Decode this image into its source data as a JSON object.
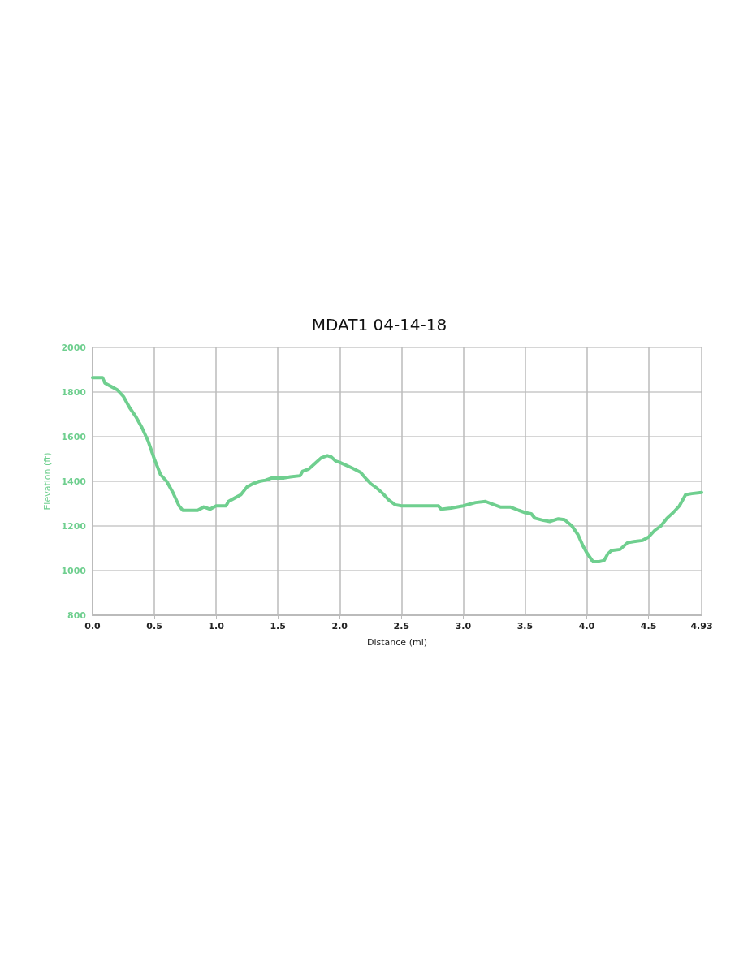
{
  "chart_data": {
    "type": "line",
    "title": "MDAT1 04-14-18",
    "xlabel": "Distance (mi)",
    "ylabel": "Elevation (ft)",
    "x": [
      0,
      0.08,
      0.1,
      0.15,
      0.2,
      0.25,
      0.3,
      0.35,
      0.4,
      0.45,
      0.5,
      0.55,
      0.6,
      0.65,
      0.7,
      0.73,
      0.85,
      0.9,
      0.95,
      1.0,
      1.08,
      1.1,
      1.15,
      1.2,
      1.25,
      1.3,
      1.35,
      1.4,
      1.45,
      1.55,
      1.6,
      1.68,
      1.7,
      1.75,
      1.8,
      1.85,
      1.9,
      1.93,
      1.97,
      2.0,
      2.1,
      2.17,
      2.2,
      2.25,
      2.3,
      2.35,
      2.4,
      2.45,
      2.5,
      2.8,
      2.82,
      2.9,
      3.0,
      3.1,
      3.18,
      3.25,
      3.3,
      3.38,
      3.45,
      3.5,
      3.55,
      3.58,
      3.65,
      3.7,
      3.77,
      3.82,
      3.88,
      3.93,
      3.97,
      4.0,
      4.05,
      4.1,
      4.14,
      4.17,
      4.2,
      4.27,
      4.33,
      4.38,
      4.45,
      4.5,
      4.55,
      4.6,
      4.65,
      4.7,
      4.75,
      4.78,
      4.8,
      4.85,
      4.93
    ],
    "series": [
      {
        "color": "#6fcf8f",
        "values": [
          1865,
          1865,
          1840,
          1825,
          1810,
          1780,
          1730,
          1690,
          1640,
          1580,
          1500,
          1430,
          1400,
          1350,
          1290,
          1270,
          1270,
          1285,
          1275,
          1290,
          1290,
          1310,
          1325,
          1340,
          1375,
          1390,
          1400,
          1405,
          1415,
          1415,
          1420,
          1425,
          1445,
          1455,
          1480,
          1505,
          1515,
          1510,
          1490,
          1485,
          1460,
          1440,
          1420,
          1390,
          1370,
          1345,
          1315,
          1295,
          1290,
          1290,
          1275,
          1280,
          1290,
          1305,
          1310,
          1295,
          1285,
          1285,
          1270,
          1260,
          1255,
          1235,
          1225,
          1220,
          1232,
          1228,
          1200,
          1160,
          1110,
          1080,
          1040,
          1040,
          1045,
          1075,
          1090,
          1095,
          1125,
          1130,
          1135,
          1150,
          1180,
          1200,
          1235,
          1260,
          1290,
          1320,
          1340,
          1345,
          1350
        ]
      }
    ],
    "xlim": [
      0,
      4.93
    ],
    "xticks": [
      {
        "value": 0,
        "label": "0.0"
      },
      0.5,
      {
        "value": 1,
        "label": "1.0"
      },
      1.5,
      {
        "value": 2,
        "label": "2.0"
      },
      2.5,
      {
        "value": 3,
        "label": "3.0"
      },
      3.5,
      {
        "value": 4,
        "label": "4.0"
      },
      4.5,
      4.93
    ],
    "ylim": [
      800,
      2000
    ],
    "yticks": [
      800,
      1000,
      1200,
      1400,
      1600,
      1800,
      2000
    ],
    "grid": true,
    "marker": "none",
    "line_style": "solid"
  }
}
